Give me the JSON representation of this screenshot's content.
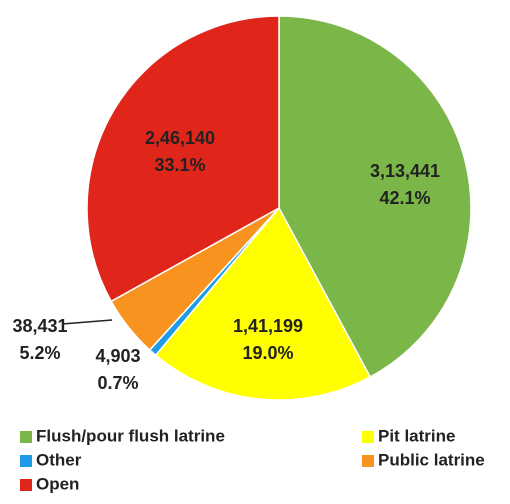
{
  "chart_data": {
    "type": "pie",
    "categories": [
      "Flush/pour flush latrine",
      "Pit latrine",
      "Other",
      "Public latrine",
      "Open"
    ],
    "values": [
      313441,
      141199,
      4903,
      38431,
      246140
    ],
    "value_labels": [
      "3,13,441",
      "1,41,199",
      "4,903",
      "38,431",
      "2,46,140"
    ],
    "percentages": [
      42.1,
      19.0,
      0.7,
      5.2,
      33.1
    ],
    "percent_labels": [
      "42.1%",
      "19.0%",
      "0.7%",
      "5.2%",
      "33.1%"
    ],
    "colors": [
      "#7ab648",
      "#ffff00",
      "#1e9be8",
      "#f7931e",
      "#e0251b"
    ],
    "legend": "bottom"
  }
}
